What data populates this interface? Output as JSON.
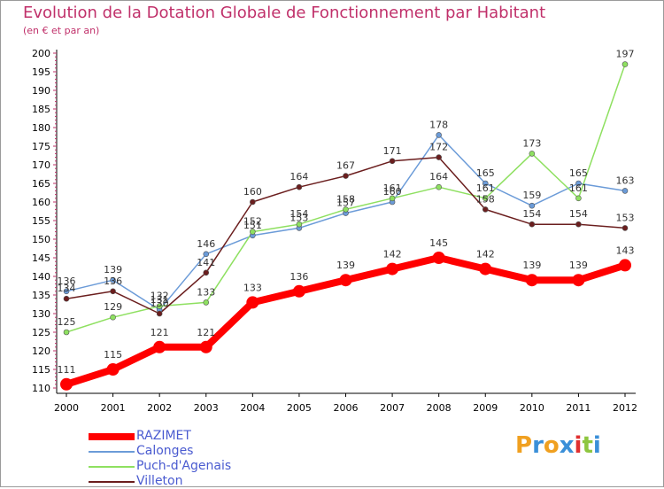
{
  "title": "Evolution de la Dotation Globale de Fonctionnement par Habitant",
  "subtitle": "(en € et par an)",
  "logo_text": "Proxiti",
  "colors": {
    "title": "#c0306a",
    "legend_text": "#4a5bd0",
    "axis": "#000000",
    "tick_mark": "#c0306a"
  },
  "chart_data": {
    "type": "line",
    "x": [
      "2000",
      "2001",
      "2002",
      "2003",
      "2004",
      "2005",
      "2006",
      "2007",
      "2008",
      "2009",
      "2010",
      "2011",
      "2012"
    ],
    "ylim": [
      110,
      200
    ],
    "yticks": [
      110,
      115,
      120,
      125,
      130,
      135,
      140,
      145,
      150,
      155,
      160,
      165,
      170,
      175,
      180,
      185,
      190,
      195,
      200
    ],
    "grid": false,
    "legend_position": "bottom-left",
    "series": [
      {
        "name": "RAZIMET",
        "color": "#ff0000",
        "emphasis": true,
        "values": [
          111,
          115,
          121,
          121,
          133,
          136,
          139,
          142,
          145,
          142,
          139,
          139,
          143
        ]
      },
      {
        "name": "Calonges",
        "color": "#6b9bd8",
        "emphasis": false,
        "values": [
          136,
          139,
          131,
          146,
          151,
          153,
          157,
          160,
          178,
          165,
          159,
          165,
          163
        ]
      },
      {
        "name": "Puch-d'Agenais",
        "color": "#8ee060",
        "emphasis": false,
        "values": [
          125,
          129,
          132,
          133,
          152,
          154,
          158,
          161,
          164,
          161,
          173,
          161,
          197
        ]
      },
      {
        "name": "Villeton",
        "color": "#6b1e1e",
        "emphasis": false,
        "values": [
          134,
          136,
          130,
          141,
          160,
          164,
          167,
          171,
          172,
          158,
          154,
          154,
          153
        ]
      }
    ]
  }
}
